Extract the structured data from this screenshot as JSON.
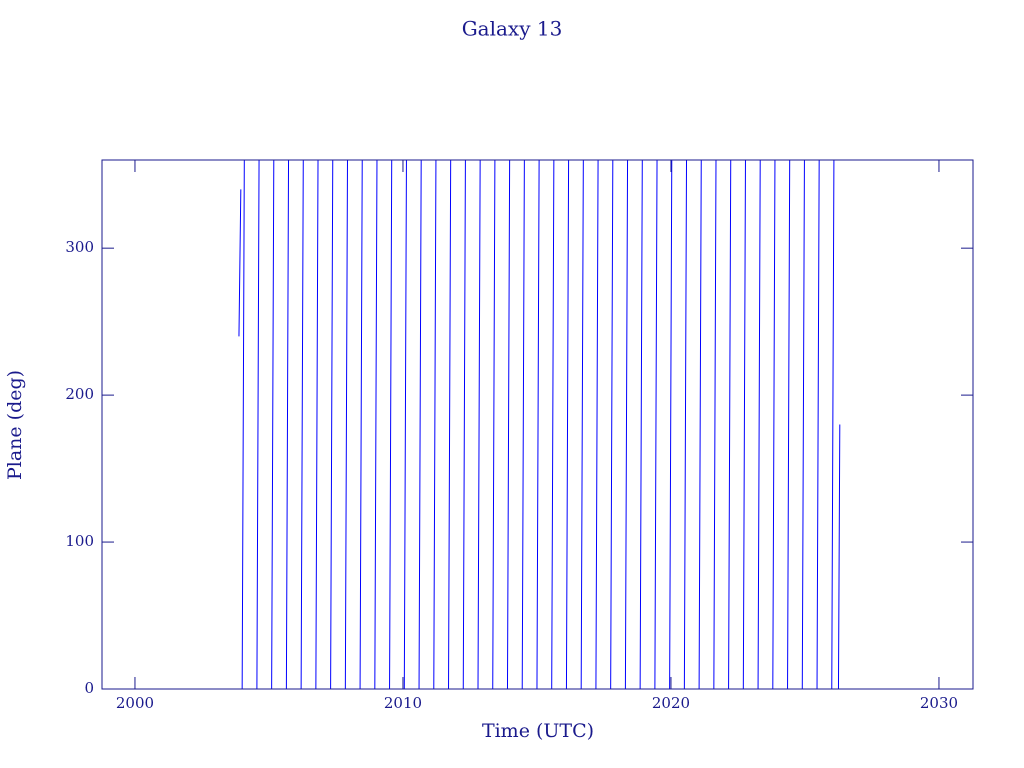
{
  "chart_data": {
    "type": "line",
    "title": "Galaxy 13",
    "x_label": "Time (UTC)",
    "y_label": "Plane (deg)",
    "xlim": [
      1998.77,
      2031.27
    ],
    "ylim": [
      0,
      360
    ],
    "xticks": [
      2000,
      2010,
      2020,
      2030
    ],
    "yticks": [
      0,
      100,
      200,
      300
    ],
    "grid": false,
    "series": [
      {
        "name": "Plane",
        "color": "#0000ff",
        "x": [
          2003.88,
          2003.95,
          2003.95,
          2004.0,
          2004.08,
          2004.08,
          2004.55,
          2004.63,
          2004.63,
          2005.1,
          2005.18,
          2005.18,
          2005.65,
          2005.73,
          2005.73,
          2006.2,
          2006.28,
          2006.28,
          2006.75,
          2006.83,
          2006.83,
          2007.3,
          2007.38,
          2007.38,
          2007.85,
          2007.93,
          2007.93,
          2008.4,
          2008.48,
          2008.48,
          2008.95,
          2009.03,
          2009.03,
          2009.5,
          2009.58,
          2009.58,
          2010.05,
          2010.13,
          2010.13,
          2010.6,
          2010.68,
          2010.68,
          2011.15,
          2011.23,
          2011.23,
          2011.7,
          2011.78,
          2011.78,
          2012.25,
          2012.33,
          2012.33,
          2012.8,
          2012.88,
          2012.88,
          2013.35,
          2013.43,
          2013.43,
          2013.9,
          2013.98,
          2013.98,
          2014.45,
          2014.53,
          2014.53,
          2015.0,
          2015.08,
          2015.08,
          2015.55,
          2015.63,
          2015.63,
          2016.1,
          2016.18,
          2016.18,
          2016.65,
          2016.73,
          2016.73,
          2017.2,
          2017.28,
          2017.28,
          2017.75,
          2017.83,
          2017.83,
          2018.3,
          2018.38,
          2018.38,
          2018.85,
          2018.93,
          2018.93,
          2019.4,
          2019.48,
          2019.48,
          2019.95,
          2020.03,
          2020.03,
          2020.5,
          2020.58,
          2020.58,
          2021.05,
          2021.13,
          2021.13,
          2021.6,
          2021.68,
          2021.68,
          2022.15,
          2022.23,
          2022.23,
          2022.7,
          2022.78,
          2022.78,
          2023.25,
          2023.33,
          2023.33,
          2023.8,
          2023.88,
          2023.88,
          2024.35,
          2024.43,
          2024.43,
          2024.9,
          2024.98,
          2024.98,
          2025.45,
          2025.53,
          2025.53,
          2026.0,
          2026.08,
          2026.08,
          2026.25,
          2026.3
        ],
        "values": [
          240,
          340,
          null,
          0,
          360,
          null,
          0,
          360,
          null,
          0,
          360,
          null,
          0,
          360,
          null,
          0,
          360,
          null,
          0,
          360,
          null,
          0,
          360,
          null,
          0,
          360,
          null,
          0,
          360,
          null,
          0,
          360,
          null,
          0,
          360,
          null,
          0,
          360,
          null,
          0,
          360,
          null,
          0,
          360,
          null,
          0,
          360,
          null,
          0,
          360,
          null,
          0,
          360,
          null,
          0,
          360,
          null,
          0,
          360,
          null,
          0,
          360,
          null,
          0,
          360,
          null,
          0,
          360,
          null,
          0,
          360,
          null,
          0,
          360,
          null,
          0,
          360,
          null,
          0,
          360,
          null,
          0,
          360,
          null,
          0,
          360,
          null,
          0,
          360,
          null,
          0,
          360,
          null,
          0,
          360,
          null,
          0,
          360,
          null,
          0,
          360,
          null,
          0,
          360,
          null,
          0,
          360,
          null,
          0,
          360,
          null,
          0,
          360,
          null,
          0,
          360,
          null,
          0,
          360,
          null,
          0,
          360,
          null,
          0,
          360,
          null,
          0,
          180
        ]
      }
    ]
  }
}
